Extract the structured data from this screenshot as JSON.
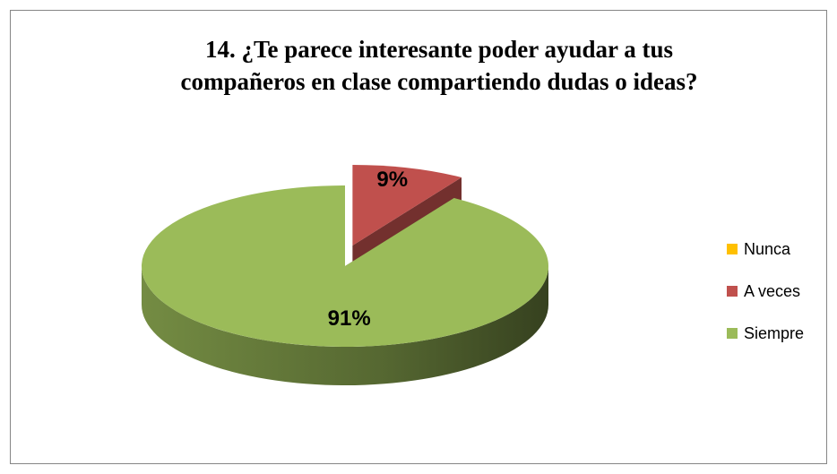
{
  "chart_data": {
    "type": "pie",
    "title": "14. ¿Te parece interesante poder ayudar a tus compañeros en clase compartiendo dudas o ideas?",
    "categories": [
      "Nunca",
      "A veces",
      "Siempre"
    ],
    "values": [
      0,
      9,
      91
    ],
    "value_labels": [
      null,
      "9%",
      "91%"
    ],
    "colors": [
      "#ffc000",
      "#c0504d",
      "#9bbb59"
    ],
    "legend": "right"
  }
}
